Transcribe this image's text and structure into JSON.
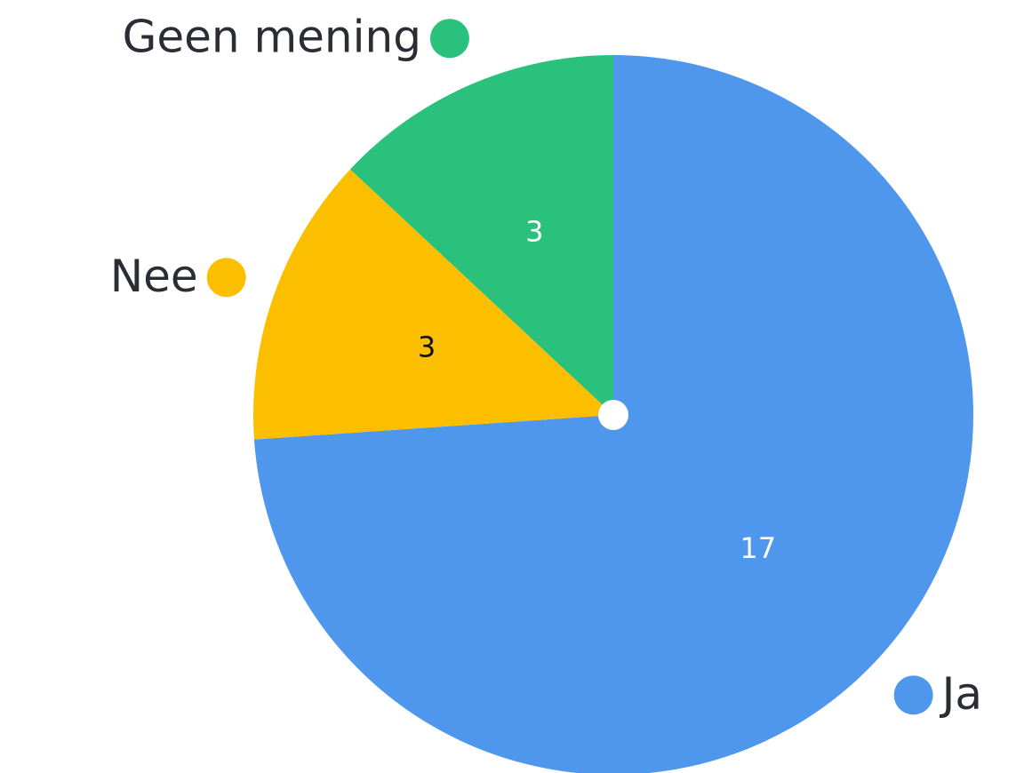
{
  "chart_data": {
    "type": "pie",
    "categories": [
      "Ja",
      "Nee",
      "Geen mening"
    ],
    "values": [
      17,
      3,
      3
    ],
    "colors": [
      "#4f97ec",
      "#fbbf00",
      "#29c17c"
    ],
    "value_label_colors": [
      "#ffffff",
      "#111111",
      "#ffffff"
    ]
  }
}
